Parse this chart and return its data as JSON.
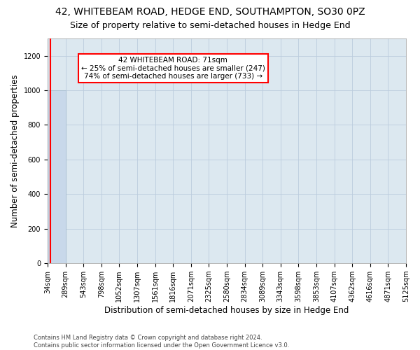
{
  "title": "42, WHITEBEAM ROAD, HEDGE END, SOUTHAMPTON, SO30 0PZ",
  "subtitle": "Size of property relative to semi-detached houses in Hedge End",
  "xlabel": "Distribution of semi-detached houses by size in Hedge End",
  "ylabel": "Number of semi-detached properties",
  "footnote": "Contains HM Land Registry data © Crown copyright and database right 2024.\nContains public sector information licensed under the Open Government Licence v3.0.",
  "annotation_line1": "42 WHITEBEAM ROAD: 71sqm",
  "annotation_line2": "← 25% of semi-detached houses are smaller (247)",
  "annotation_line3": "74% of semi-detached houses are larger (733) →",
  "property_value": 71,
  "bin_edges": [
    34,
    289,
    543,
    798,
    1052,
    1307,
    1561,
    1816,
    2071,
    2325,
    2580,
    2834,
    3089,
    3343,
    3598,
    3853,
    4107,
    4362,
    4616,
    4871,
    5125
  ],
  "bar_heights": [
    1000,
    0,
    0,
    0,
    0,
    0,
    0,
    0,
    0,
    0,
    0,
    0,
    0,
    0,
    0,
    0,
    0,
    0,
    0,
    0
  ],
  "bar_color": "#c8d8ea",
  "bar_edge_color": "#a0b8cc",
  "red_line_x": 71,
  "ylim": [
    0,
    1300
  ],
  "yticks": [
    0,
    200,
    400,
    600,
    800,
    1000,
    1200
  ],
  "ax_facecolor": "#dce8f0",
  "background_color": "#ffffff",
  "grid_color": "#bbccdd",
  "title_fontsize": 10,
  "subtitle_fontsize": 9,
  "axis_fontsize": 8.5,
  "tick_fontsize": 7,
  "annotation_fontsize": 7.5,
  "footnote_fontsize": 6
}
